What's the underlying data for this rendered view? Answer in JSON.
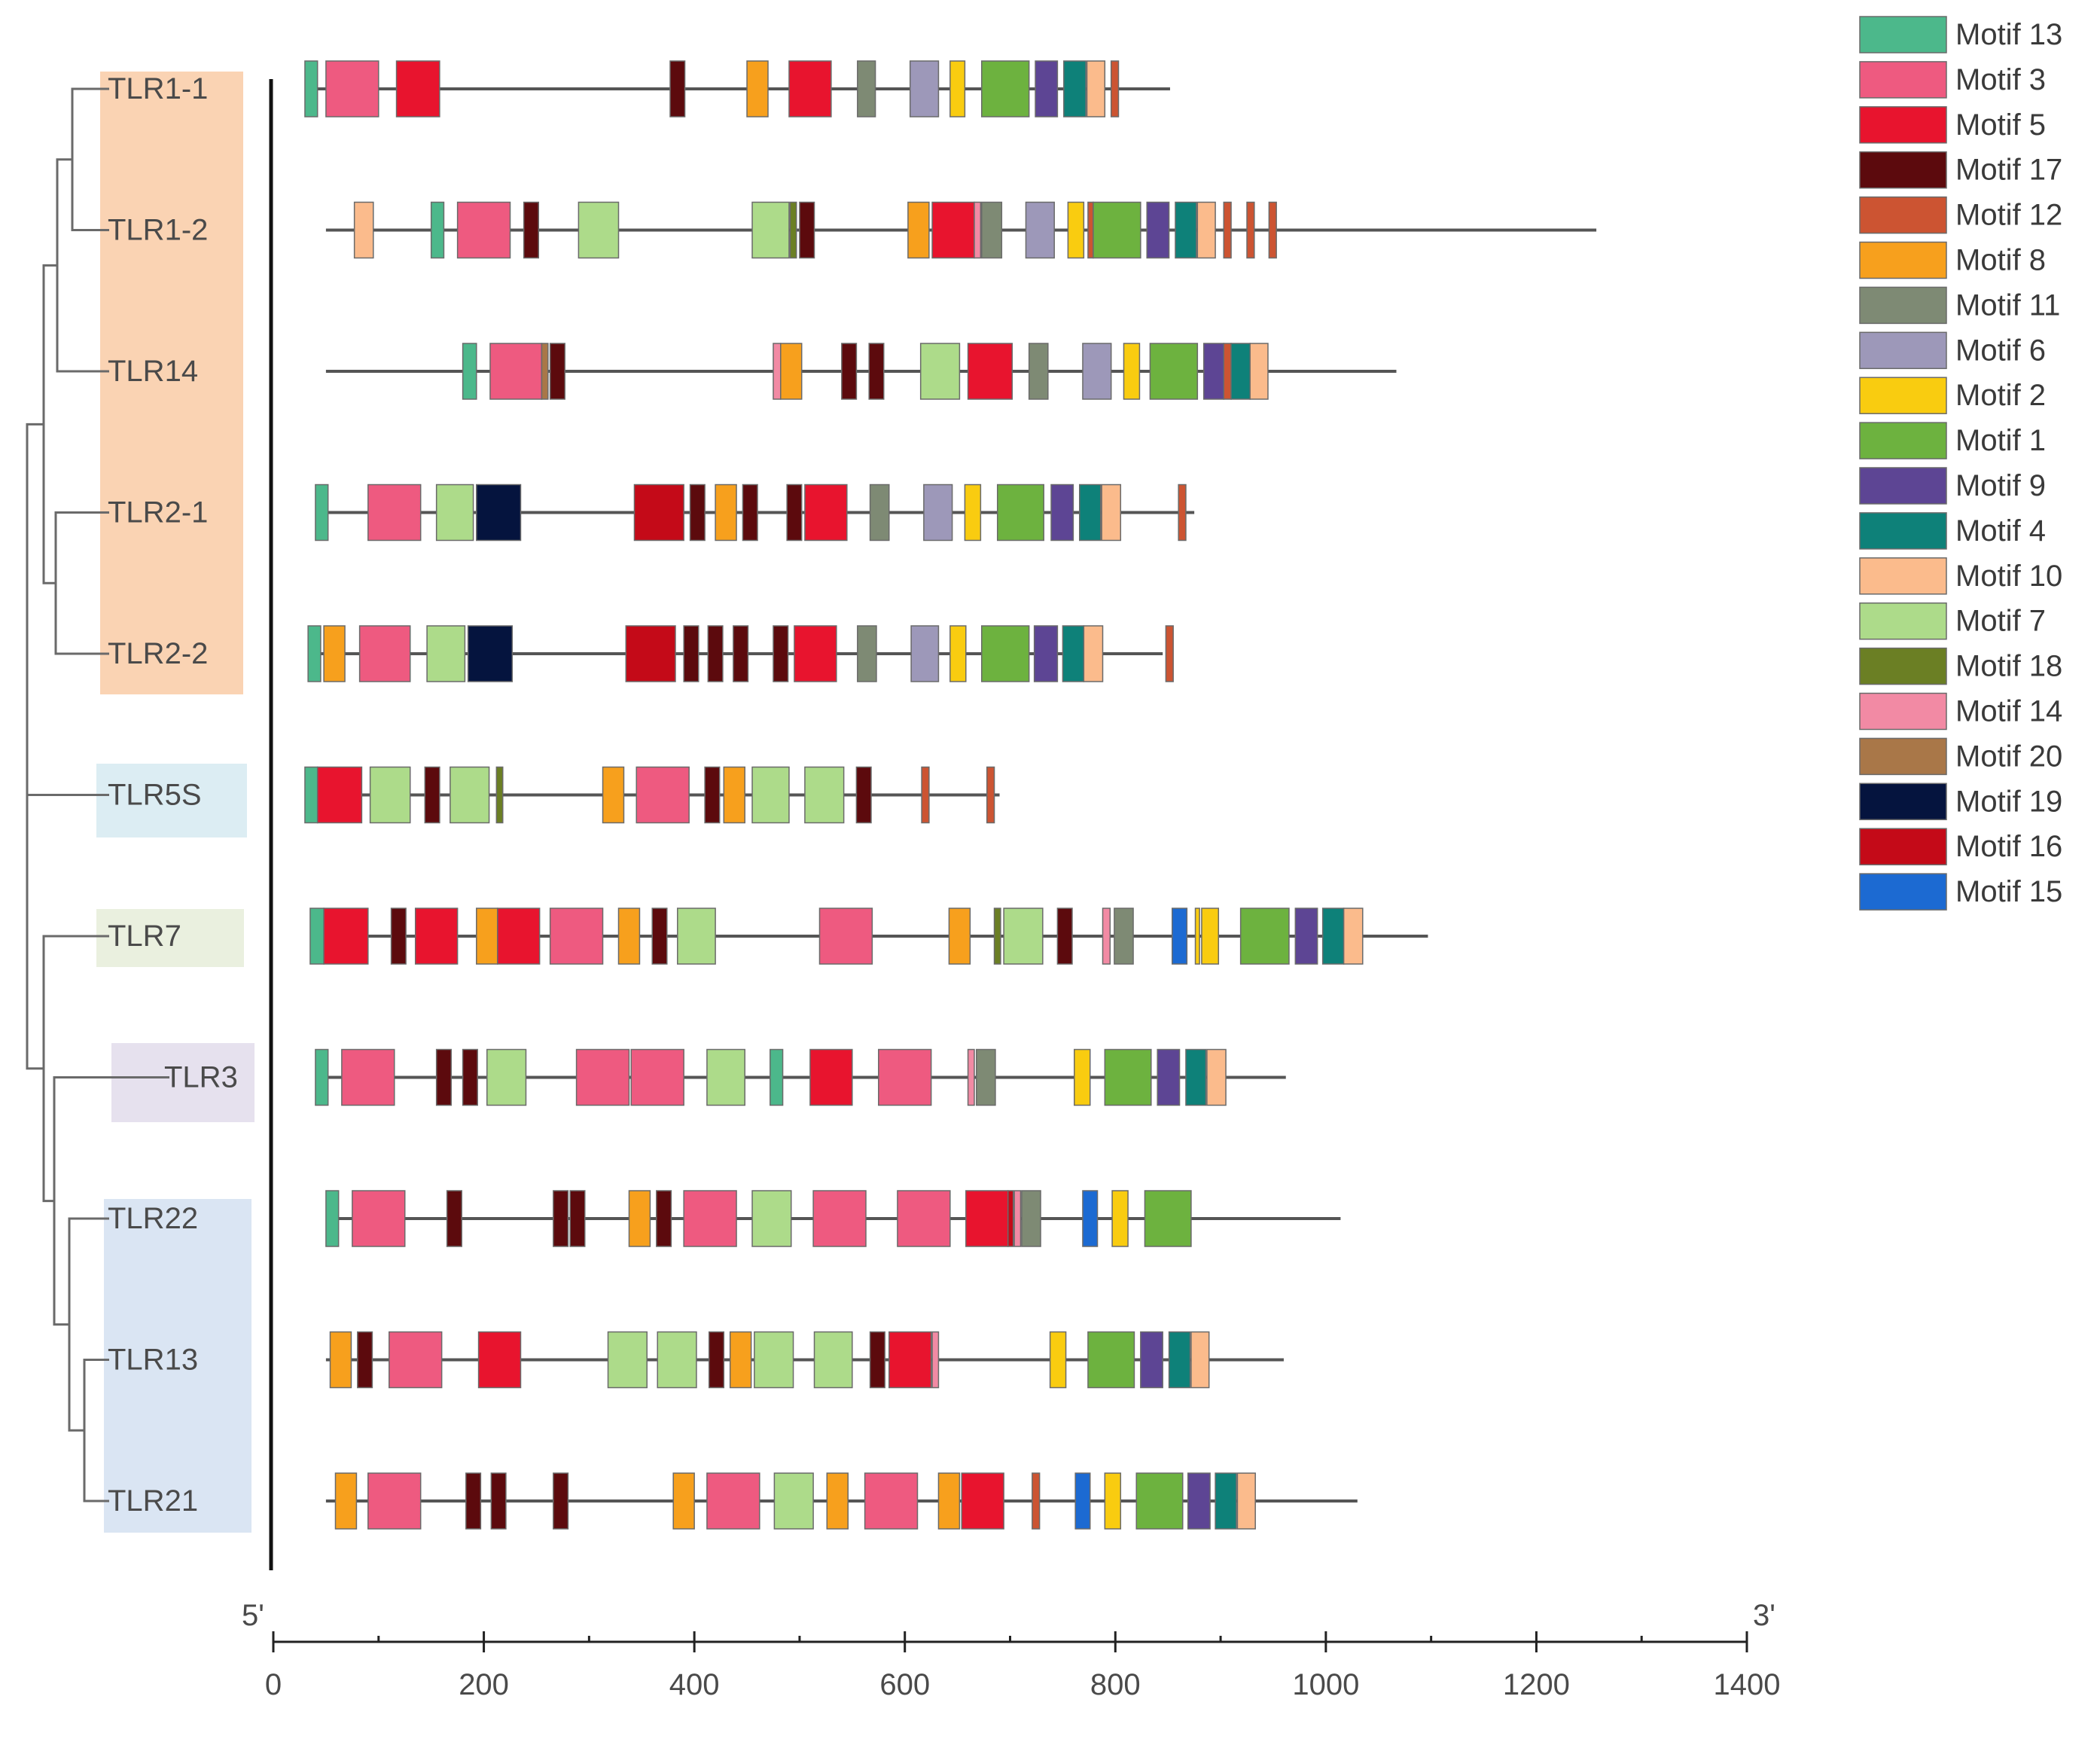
{
  "title": "",
  "scale": {
    "start_label": "5'",
    "end_label": "3'",
    "min": 0,
    "max": 1400,
    "ticks": [
      "0",
      "200",
      "400",
      "600",
      "800",
      "1000",
      "1200",
      "1400"
    ]
  },
  "motifs": [
    {
      "id": "13",
      "label": "Motif 13",
      "color": "#4cb88b"
    },
    {
      "id": "3",
      "label": "Motif 3",
      "color": "#ee5a80"
    },
    {
      "id": "5",
      "label": "Motif 5",
      "color": "#e8142e"
    },
    {
      "id": "17",
      "label": "Motif 17",
      "color": "#5c0a0d"
    },
    {
      "id": "12",
      "label": "Motif 12",
      "color": "#cc5432"
    },
    {
      "id": "8",
      "label": "Motif 8",
      "color": "#f7a01d"
    },
    {
      "id": "11",
      "label": "Motif 11",
      "color": "#7e8a74"
    },
    {
      "id": "6",
      "label": "Motif 6",
      "color": "#9d98b9"
    },
    {
      "id": "2",
      "label": "Motif 2",
      "color": "#f9cc10"
    },
    {
      "id": "1",
      "label": "Motif 1",
      "color": "#6db23f"
    },
    {
      "id": "9",
      "label": "Motif 9",
      "color": "#5d4594"
    },
    {
      "id": "4",
      "label": "Motif 4",
      "color": "#0e8179"
    },
    {
      "id": "10",
      "label": "Motif 10",
      "color": "#fbbb8c"
    },
    {
      "id": "7",
      "label": "Motif 7",
      "color": "#addb8a"
    },
    {
      "id": "18",
      "label": "Motif 18",
      "color": "#6b7f24"
    },
    {
      "id": "14",
      "label": "Motif 14",
      "color": "#f28aa4"
    },
    {
      "id": "20",
      "label": "Motif 20",
      "color": "#a97748"
    },
    {
      "id": "19",
      "label": "Motif 19",
      "color": "#05143e"
    },
    {
      "id": "16",
      "label": "Motif 16",
      "color": "#c40a18"
    },
    {
      "id": "15",
      "label": "Motif 15",
      "color": "#1c6ad2"
    }
  ],
  "genes": [
    {
      "name": "TLR1-1",
      "group_color": "#fad3b3",
      "length": 852,
      "motifs": [
        [
          "13",
          30,
          42
        ],
        [
          "3",
          50,
          100
        ],
        [
          "5",
          117,
          158
        ],
        [
          "17",
          377,
          391
        ],
        [
          "8",
          450,
          470
        ],
        [
          "5",
          490,
          530
        ],
        [
          "11",
          555,
          572
        ],
        [
          "6",
          605,
          632
        ],
        [
          "2",
          643,
          657
        ],
        [
          "1",
          673,
          718
        ],
        [
          "9",
          724,
          745
        ],
        [
          "4",
          751,
          772
        ],
        [
          "10",
          773,
          790
        ],
        [
          "12",
          796,
          803
        ]
      ]
    },
    {
      "name": "TLR1-2",
      "group_color": "#fad3b3",
      "length": 1257,
      "motifs": [
        [
          "10",
          77,
          95
        ],
        [
          "13",
          150,
          162
        ],
        [
          "3",
          175,
          225
        ],
        [
          "17",
          238,
          252
        ],
        [
          "7",
          290,
          328
        ],
        [
          "7",
          455,
          490
        ],
        [
          "18",
          491,
          497
        ],
        [
          "17",
          500,
          514
        ],
        [
          "8",
          603,
          623
        ],
        [
          "5",
          626,
          666
        ],
        [
          "14",
          666,
          672
        ],
        [
          "11",
          673,
          692
        ],
        [
          "6",
          715,
          742
        ],
        [
          "2",
          755,
          770
        ],
        [
          "12",
          774,
          779
        ],
        [
          "1",
          779,
          824
        ],
        [
          "9",
          830,
          851
        ],
        [
          "4",
          857,
          877
        ],
        [
          "10",
          878,
          895
        ],
        [
          "12",
          903,
          910
        ],
        [
          "12",
          925,
          932
        ],
        [
          "12",
          946,
          953
        ]
      ]
    },
    {
      "name": "TLR14",
      "group_color": "#fad3b3",
      "length": 1067,
      "motifs": [
        [
          "13",
          180,
          193
        ],
        [
          "3",
          206,
          255
        ],
        [
          "20",
          255,
          261
        ],
        [
          "17",
          263,
          277
        ],
        [
          "14",
          475,
          482
        ],
        [
          "8",
          482,
          502
        ],
        [
          "17",
          540,
          554
        ],
        [
          "17",
          566,
          580
        ],
        [
          "7",
          615,
          652
        ],
        [
          "5",
          660,
          702
        ],
        [
          "11",
          718,
          736
        ],
        [
          "6",
          769,
          796
        ],
        [
          "2",
          808,
          823
        ],
        [
          "1",
          833,
          878
        ],
        [
          "9",
          884,
          903
        ],
        [
          "12",
          903,
          910
        ],
        [
          "4",
          910,
          928
        ],
        [
          "10",
          928,
          945
        ]
      ]
    },
    {
      "name": "TLR2-1",
      "group_color": "#fad3b3",
      "length": 875,
      "motifs": [
        [
          "13",
          40,
          52
        ],
        [
          "3",
          90,
          140
        ],
        [
          "7",
          155,
          190
        ],
        [
          "19",
          193,
          235
        ],
        [
          "16",
          343,
          390
        ],
        [
          "17",
          396,
          410
        ],
        [
          "8",
          420,
          440
        ],
        [
          "17",
          446,
          460
        ],
        [
          "17",
          488,
          502
        ],
        [
          "5",
          505,
          545
        ],
        [
          "11",
          567,
          585
        ],
        [
          "6",
          618,
          645
        ],
        [
          "2",
          657,
          672
        ],
        [
          "1",
          688,
          732
        ],
        [
          "9",
          739,
          760
        ],
        [
          "4",
          766,
          786
        ],
        [
          "10",
          787,
          805
        ],
        [
          "12",
          860,
          867
        ]
      ]
    },
    {
      "name": "TLR2-2",
      "group_color": "#fad3b3",
      "length": 845,
      "motifs": [
        [
          "13",
          33,
          45
        ],
        [
          "8",
          48,
          68
        ],
        [
          "3",
          82,
          130
        ],
        [
          "7",
          146,
          182
        ],
        [
          "19",
          185,
          227
        ],
        [
          "16",
          335,
          382
        ],
        [
          "17",
          390,
          404
        ],
        [
          "17",
          413,
          427
        ],
        [
          "17",
          437,
          451
        ],
        [
          "17",
          475,
          489
        ],
        [
          "5",
          495,
          535
        ],
        [
          "11",
          555,
          573
        ],
        [
          "6",
          606,
          632
        ],
        [
          "2",
          643,
          658
        ],
        [
          "1",
          673,
          718
        ],
        [
          "9",
          723,
          745
        ],
        [
          "4",
          750,
          770
        ],
        [
          "10",
          770,
          788
        ],
        [
          "12",
          848,
          855
        ]
      ]
    },
    {
      "name": "TLR5S",
      "group_color": "#dcedf3",
      "length": 690,
      "motifs": [
        [
          "13",
          30,
          42
        ],
        [
          "5",
          42,
          84
        ],
        [
          "7",
          92,
          130
        ],
        [
          "17",
          144,
          158
        ],
        [
          "7",
          168,
          205
        ],
        [
          "18",
          212,
          218
        ],
        [
          "8",
          313,
          333
        ],
        [
          "3",
          345,
          395
        ],
        [
          "17",
          410,
          424
        ],
        [
          "8",
          428,
          448
        ],
        [
          "7",
          455,
          490
        ],
        [
          "7",
          505,
          542
        ],
        [
          "17",
          554,
          568
        ],
        [
          "12",
          616,
          623
        ],
        [
          "12",
          678,
          685
        ]
      ]
    },
    {
      "name": "TLR7",
      "group_color": "#eaf0df",
      "length": 1097,
      "motifs": [
        [
          "13",
          35,
          48
        ],
        [
          "5",
          48,
          90
        ],
        [
          "17",
          112,
          126
        ],
        [
          "5",
          135,
          175
        ],
        [
          "8",
          193,
          213
        ],
        [
          "5",
          213,
          253
        ],
        [
          "3",
          263,
          313
        ],
        [
          "8",
          328,
          348
        ],
        [
          "17",
          360,
          374
        ],
        [
          "7",
          384,
          420
        ],
        [
          "3",
          519,
          569
        ],
        [
          "8",
          642,
          662
        ],
        [
          "18",
          685,
          691
        ],
        [
          "7",
          694,
          731
        ],
        [
          "17",
          745,
          759
        ],
        [
          "14",
          788,
          795
        ],
        [
          "11",
          799,
          817
        ],
        [
          "15",
          854,
          868
        ],
        [
          "2",
          876,
          880
        ],
        [
          "2",
          882,
          898
        ],
        [
          "1",
          919,
          965
        ],
        [
          "9",
          971,
          992
        ],
        [
          "4",
          997,
          1017
        ],
        [
          "10",
          1017,
          1035
        ]
      ]
    },
    {
      "name": "TLR3",
      "group_color": "#e6e1ee",
      "length": 962,
      "motifs": [
        [
          "13",
          40,
          52
        ],
        [
          "3",
          65,
          115
        ],
        [
          "17",
          155,
          169
        ],
        [
          "17",
          180,
          194
        ],
        [
          "7",
          203,
          240
        ],
        [
          "3",
          288,
          338
        ],
        [
          "3",
          340,
          390
        ],
        [
          "7",
          412,
          448
        ],
        [
          "13",
          472,
          484
        ],
        [
          "5",
          510,
          550
        ],
        [
          "3",
          575,
          625
        ],
        [
          "14",
          660,
          666
        ],
        [
          "11",
          668,
          686
        ],
        [
          "2",
          761,
          776
        ],
        [
          "1",
          790,
          834
        ],
        [
          "9",
          840,
          861
        ],
        [
          "4",
          867,
          886
        ],
        [
          "10",
          887,
          905
        ]
      ]
    },
    {
      "name": "TLR22",
      "group_color": "#dae5f3",
      "length": 1014,
      "motifs": [
        [
          "13",
          50,
          62
        ],
        [
          "3",
          75,
          125
        ],
        [
          "17",
          165,
          179
        ],
        [
          "17",
          266,
          280
        ],
        [
          "17",
          282,
          296
        ],
        [
          "8",
          338,
          358
        ],
        [
          "17",
          364,
          378
        ],
        [
          "3",
          390,
          440
        ],
        [
          "7",
          455,
          492
        ],
        [
          "3",
          513,
          563
        ],
        [
          "3",
          593,
          643
        ],
        [
          "5",
          658,
          698
        ],
        [
          "16",
          698,
          703
        ],
        [
          "14",
          704,
          710
        ],
        [
          "11",
          711,
          729
        ],
        [
          "15",
          769,
          783
        ],
        [
          "2",
          797,
          812
        ],
        [
          "1",
          828,
          872
        ]
      ]
    },
    {
      "name": "TLR13",
      "group_color": "#dae5f3",
      "length": 960,
      "motifs": [
        [
          "8",
          54,
          74
        ],
        [
          "17",
          80,
          94
        ],
        [
          "3",
          110,
          160
        ],
        [
          "5",
          195,
          235
        ],
        [
          "7",
          318,
          355
        ],
        [
          "7",
          365,
          402
        ],
        [
          "17",
          414,
          428
        ],
        [
          "8",
          434,
          454
        ],
        [
          "7",
          457,
          494
        ],
        [
          "7",
          514,
          550
        ],
        [
          "17",
          567,
          581
        ],
        [
          "5",
          585,
          625
        ],
        [
          "14",
          626,
          632
        ],
        [
          "2",
          738,
          753
        ],
        [
          "1",
          774,
          818
        ],
        [
          "9",
          824,
          845
        ],
        [
          "4",
          851,
          871
        ],
        [
          "10",
          872,
          889
        ]
      ]
    },
    {
      "name": "TLR21",
      "group_color": "#dae5f3",
      "length": 1030,
      "motifs": [
        [
          "8",
          59,
          79
        ],
        [
          "3",
          90,
          140
        ],
        [
          "17",
          183,
          197
        ],
        [
          "17",
          207,
          221
        ],
        [
          "17",
          266,
          280
        ],
        [
          "8",
          380,
          400
        ],
        [
          "3",
          412,
          462
        ],
        [
          "7",
          476,
          513
        ],
        [
          "8",
          526,
          546
        ],
        [
          "3",
          562,
          612
        ],
        [
          "8",
          632,
          652
        ],
        [
          "5",
          654,
          694
        ],
        [
          "12",
          721,
          728
        ],
        [
          "15",
          762,
          776
        ],
        [
          "2",
          790,
          805
        ],
        [
          "1",
          820,
          864
        ],
        [
          "9",
          869,
          890
        ],
        [
          "4",
          895,
          915
        ],
        [
          "10",
          916,
          933
        ]
      ]
    }
  ]
}
